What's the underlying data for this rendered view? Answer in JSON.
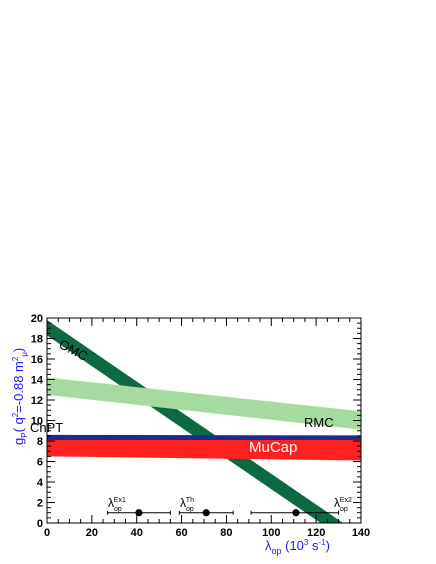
{
  "chart_data": {
    "type": "area",
    "x_axis": {
      "label_main": "λ",
      "label_sub": "op",
      "label_rest": " (10",
      "label_sup": "3",
      "label_tail": " s",
      "label_sup2": "-1",
      "label_end": ")",
      "range": [
        0,
        140
      ],
      "ticks": [
        0,
        20,
        40,
        60,
        80,
        100,
        120,
        140
      ],
      "tick_labels": [
        "0",
        "20",
        "40",
        "60",
        "80",
        "100",
        "120",
        "140"
      ],
      "minor_step": 5
    },
    "y_axis": {
      "label_main": "g",
      "label_sub": "P",
      "label_rest": "( q",
      "label_sup": "2",
      "label_mid": "=-0.88 m",
      "label_sup2": "2",
      "label_sub2": "μ",
      "label_end": ")",
      "range": [
        0,
        20
      ],
      "ticks": [
        0,
        2,
        4,
        6,
        8,
        10,
        12,
        14,
        16,
        18,
        20
      ],
      "tick_labels": [
        "0",
        "2",
        "4",
        "6",
        "8",
        "10",
        "12",
        "14",
        "16",
        "18",
        "20"
      ],
      "minor_step": 0.5
    },
    "bands": [
      {
        "name": "OMC",
        "color": "#0b6a42",
        "upper": [
          [
            0,
            19.8
          ],
          [
            140,
            -1.2
          ]
        ],
        "lower": [
          [
            0,
            18.3
          ],
          [
            140,
            -2.7
          ]
        ]
      },
      {
        "name": "RMC",
        "color": "#a6dba0",
        "upper": [
          [
            0,
            14.2
          ],
          [
            140,
            10.9
          ]
        ],
        "lower": [
          [
            0,
            12.5
          ],
          [
            140,
            9.1
          ]
        ]
      },
      {
        "name": "MuCap",
        "color": "#ff2020",
        "upper": [
          [
            0,
            8.2
          ],
          [
            140,
            8.2
          ]
        ],
        "lower": [
          [
            0,
            6.5
          ],
          [
            140,
            6.1
          ]
        ]
      },
      {
        "name": "ChPT",
        "color": "#1f2a8a",
        "upper": [
          [
            0,
            8.6
          ],
          [
            140,
            8.55
          ]
        ],
        "lower": [
          [
            0,
            8.1
          ],
          [
            140,
            8.1
          ]
        ]
      }
    ],
    "points": [
      {
        "label": "λ",
        "label_sub": "op",
        "label_sup": "Ex1",
        "x": 41,
        "y": 1.0,
        "xerr": [
          27,
          55
        ]
      },
      {
        "label": "λ",
        "label_sub": "op",
        "label_sup": "Th",
        "x": 71,
        "y": 1.0,
        "xerr": [
          59,
          83
        ]
      },
      {
        "label": "λ",
        "label_sub": "op",
        "label_sup": "Ex2",
        "x": 111,
        "y": 1.0,
        "xerr": [
          91,
          130
        ]
      }
    ],
    "annotations": {
      "omc": "OMC",
      "rmc": "RMC",
      "chpt": "ChPT",
      "mucap": "MuCap"
    },
    "colors": {
      "axis_label": "#1a1aff",
      "frame": "#000000"
    }
  }
}
